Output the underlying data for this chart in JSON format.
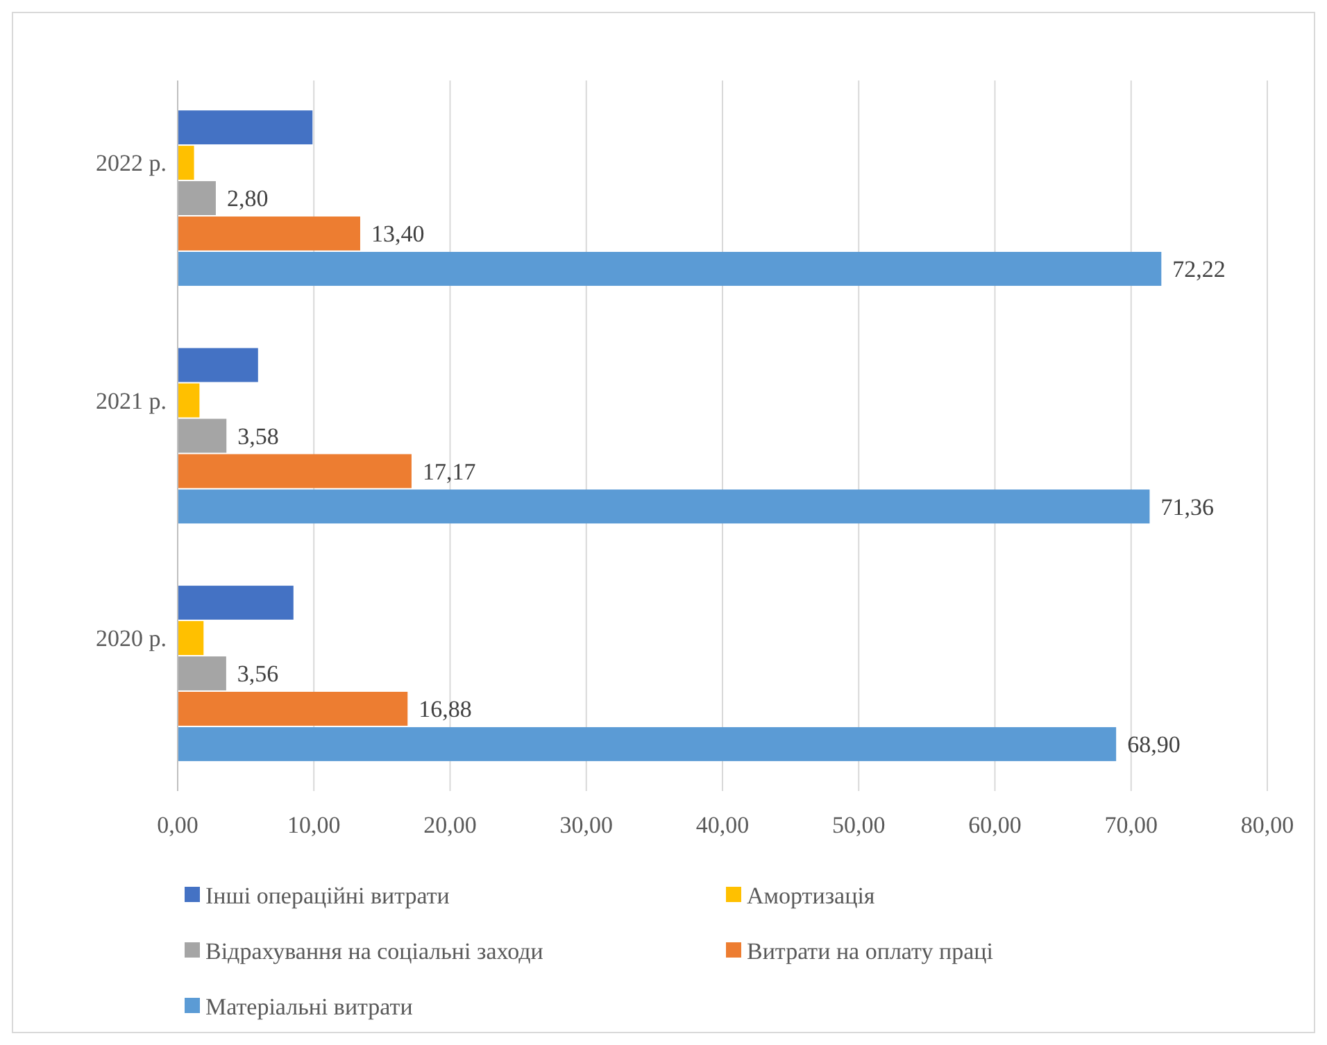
{
  "chart_data": {
    "type": "bar",
    "orientation": "horizontal",
    "categories": [
      "2022 р.",
      "2021 р.",
      "2020 р."
    ],
    "series": [
      {
        "name": "Інші операційні витрати",
        "color": "#4472c4",
        "values": [
          9.9,
          5.9,
          8.5
        ]
      },
      {
        "name": "Амортизація",
        "color": "#ffc000",
        "values": [
          1.2,
          1.6,
          1.9
        ]
      },
      {
        "name": "Відрахування на соціальні заходи",
        "color": "#a5a5a5",
        "values": [
          2.8,
          3.58,
          3.56
        ],
        "value_labels": [
          "2,80",
          "3,58",
          "3,56"
        ]
      },
      {
        "name": "Витрати на оплату праці",
        "color": "#ed7d31",
        "values": [
          13.4,
          17.17,
          16.88
        ],
        "value_labels": [
          "13,40",
          "17,17",
          "16,88"
        ]
      },
      {
        "name": "Матеріальні витрати",
        "color": "#5b9bd5",
        "values": [
          72.22,
          71.36,
          68.9
        ],
        "value_labels": [
          "72,22",
          "71,36",
          "68,90"
        ]
      }
    ],
    "xlim": [
      0,
      80
    ],
    "xticks": [
      {
        "value": 0,
        "label": "0,00"
      },
      {
        "value": 10,
        "label": "10,00"
      },
      {
        "value": 20,
        "label": "20,00"
      },
      {
        "value": 30,
        "label": "30,00"
      },
      {
        "value": 40,
        "label": "40,00"
      },
      {
        "value": 50,
        "label": "50,00"
      },
      {
        "value": 60,
        "label": "60,00"
      },
      {
        "value": 70,
        "label": "70,00"
      },
      {
        "value": 80,
        "label": "80,00"
      }
    ],
    "grid": "x",
    "legend": "bottom"
  }
}
